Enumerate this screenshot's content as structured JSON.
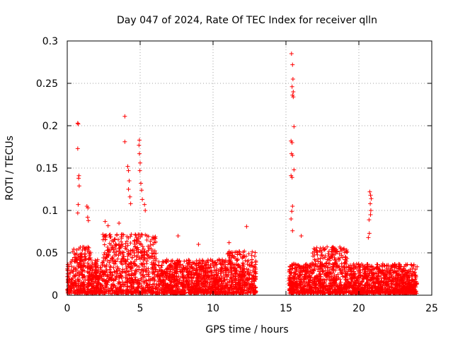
{
  "chart_data": {
    "type": "scatter",
    "title": "Day 047 of 2024, Rate Of TEC Index for receiver qlln",
    "xlabel": "GPS time / hours",
    "ylabel": "ROTI / TECUs",
    "xlim": [
      0,
      25
    ],
    "ylim": [
      0,
      0.3
    ],
    "xticks": [
      0,
      5,
      10,
      15,
      20,
      25
    ],
    "xtick_labels": [
      "0",
      "5",
      "10",
      "15",
      "20",
      "25"
    ],
    "yticks": [
      0,
      0.05,
      0.1,
      0.15,
      0.2,
      0.25,
      0.3
    ],
    "ytick_labels": [
      "0",
      "0.05",
      "0.1",
      "0.15",
      "0.2",
      "0.25",
      "0.3"
    ],
    "grid": true,
    "marker": "+",
    "color": "#ff0000",
    "series": [
      {
        "name": "ROTI",
        "data_gap_hours": [
          12.95,
          15.2
        ],
        "segments": [
          {
            "x_range": [
              0.0,
              12.95
            ],
            "base_min": 0.002,
            "base_max": 0.04,
            "density": 2400
          },
          {
            "x_range": [
              15.2,
              24.0
            ],
            "base_min": 0.002,
            "base_max": 0.035,
            "density": 1700
          }
        ],
        "peaks": [
          {
            "x": 0.72,
            "y": 0.203
          },
          {
            "x": 0.75,
            "y": 0.202
          },
          {
            "x": 0.72,
            "y": 0.173
          },
          {
            "x": 0.8,
            "y": 0.141
          },
          {
            "x": 0.78,
            "y": 0.138
          },
          {
            "x": 0.82,
            "y": 0.129
          },
          {
            "x": 0.75,
            "y": 0.107
          },
          {
            "x": 0.72,
            "y": 0.097
          },
          {
            "x": 1.35,
            "y": 0.105
          },
          {
            "x": 1.42,
            "y": 0.103
          },
          {
            "x": 1.4,
            "y": 0.092
          },
          {
            "x": 1.45,
            "y": 0.088
          },
          {
            "x": 3.95,
            "y": 0.211
          },
          {
            "x": 3.95,
            "y": 0.181
          },
          {
            "x": 4.15,
            "y": 0.152
          },
          {
            "x": 4.2,
            "y": 0.147
          },
          {
            "x": 4.25,
            "y": 0.135
          },
          {
            "x": 4.2,
            "y": 0.125
          },
          {
            "x": 4.3,
            "y": 0.116
          },
          {
            "x": 4.35,
            "y": 0.108
          },
          {
            "x": 4.95,
            "y": 0.183
          },
          {
            "x": 4.92,
            "y": 0.177
          },
          {
            "x": 4.95,
            "y": 0.167
          },
          {
            "x": 5.0,
            "y": 0.156
          },
          {
            "x": 4.98,
            "y": 0.147
          },
          {
            "x": 5.05,
            "y": 0.132
          },
          {
            "x": 5.1,
            "y": 0.124
          },
          {
            "x": 5.15,
            "y": 0.113
          },
          {
            "x": 5.3,
            "y": 0.107
          },
          {
            "x": 5.35,
            "y": 0.1
          },
          {
            "x": 2.6,
            "y": 0.087
          },
          {
            "x": 2.8,
            "y": 0.082
          },
          {
            "x": 3.55,
            "y": 0.085
          },
          {
            "x": 7.6,
            "y": 0.07
          },
          {
            "x": 12.3,
            "y": 0.081
          },
          {
            "x": 11.1,
            "y": 0.062
          },
          {
            "x": 9.0,
            "y": 0.06
          },
          {
            "x": 15.38,
            "y": 0.285
          },
          {
            "x": 15.45,
            "y": 0.272
          },
          {
            "x": 15.48,
            "y": 0.255
          },
          {
            "x": 15.42,
            "y": 0.246
          },
          {
            "x": 15.5,
            "y": 0.24
          },
          {
            "x": 15.45,
            "y": 0.236
          },
          {
            "x": 15.5,
            "y": 0.234
          },
          {
            "x": 15.55,
            "y": 0.199
          },
          {
            "x": 15.35,
            "y": 0.182
          },
          {
            "x": 15.42,
            "y": 0.18
          },
          {
            "x": 15.38,
            "y": 0.167
          },
          {
            "x": 15.45,
            "y": 0.165
          },
          {
            "x": 15.55,
            "y": 0.148
          },
          {
            "x": 15.35,
            "y": 0.141
          },
          {
            "x": 15.42,
            "y": 0.139
          },
          {
            "x": 15.45,
            "y": 0.105
          },
          {
            "x": 15.4,
            "y": 0.099
          },
          {
            "x": 15.35,
            "y": 0.09
          },
          {
            "x": 15.45,
            "y": 0.076
          },
          {
            "x": 16.05,
            "y": 0.07
          },
          {
            "x": 20.75,
            "y": 0.122
          },
          {
            "x": 20.8,
            "y": 0.118
          },
          {
            "x": 20.85,
            "y": 0.114
          },
          {
            "x": 20.78,
            "y": 0.108
          },
          {
            "x": 20.82,
            "y": 0.1
          },
          {
            "x": 20.8,
            "y": 0.095
          },
          {
            "x": 20.7,
            "y": 0.089
          },
          {
            "x": 20.72,
            "y": 0.073
          },
          {
            "x": 20.65,
            "y": 0.068
          }
        ]
      }
    ]
  }
}
